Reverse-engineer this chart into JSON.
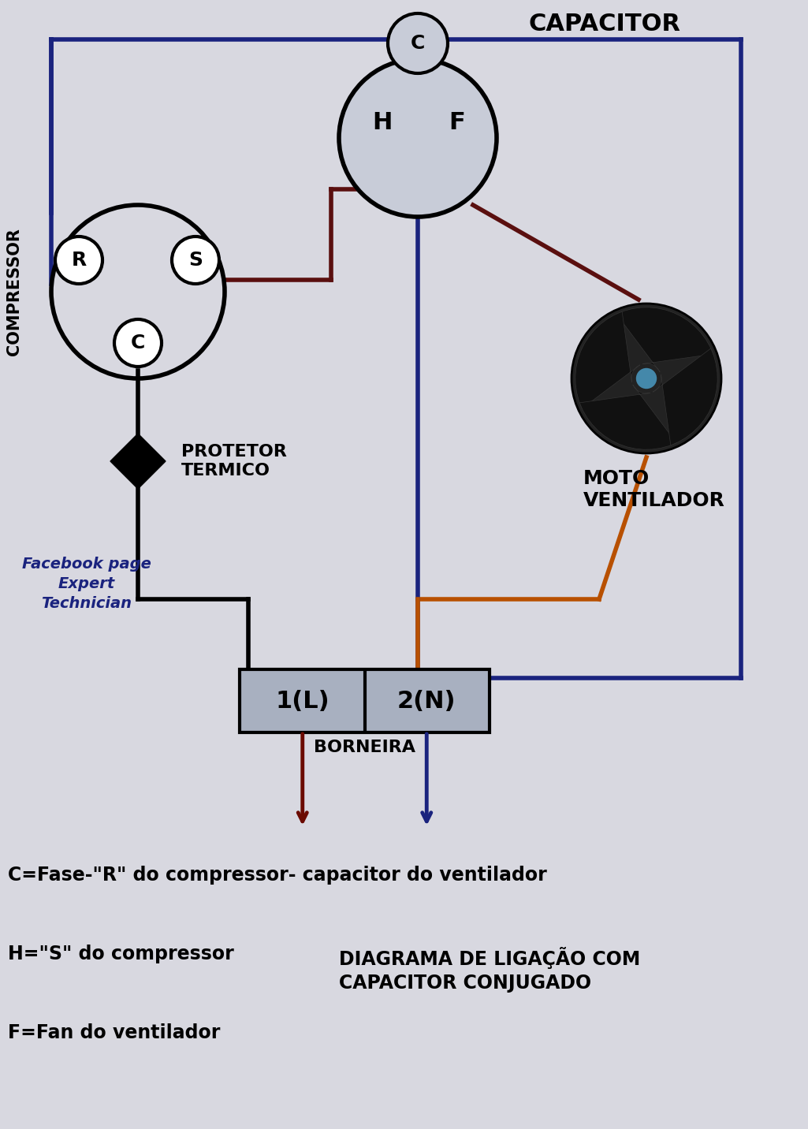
{
  "bg_color": "#d8d8e0",
  "title": "DIAGRAMA DE LIGAÇÃO COM\nCAPACITOR CONJUGADO",
  "capacitor_label": "CAPACITOR",
  "compressor_label": "COMPRESSOR",
  "protetor_label": "PROTETOR\nTERMICO",
  "moto_label": "MOTO\nVENTILADOR",
  "borneira_label": "BORNEIRA",
  "terminal1_label": "1(L)",
  "terminal2_label": "2(N)",
  "facebook_label": "Facebook page\nExpert\nTechnician",
  "legend_c": "C=Fase-\"R\" do compressor- capacitor do ventilador",
  "legend_h": "H=\"S\" do compressor",
  "legend_f": "F=Fan do ventilador",
  "color_dark_blue": "#1a237e",
  "color_brown": "#5a0f0f",
  "color_orange": "#b85000",
  "color_black": "#000000",
  "color_white": "#ffffff",
  "color_light_gray": "#c8ccd8",
  "color_terminal_bg": "#a8b0c0"
}
